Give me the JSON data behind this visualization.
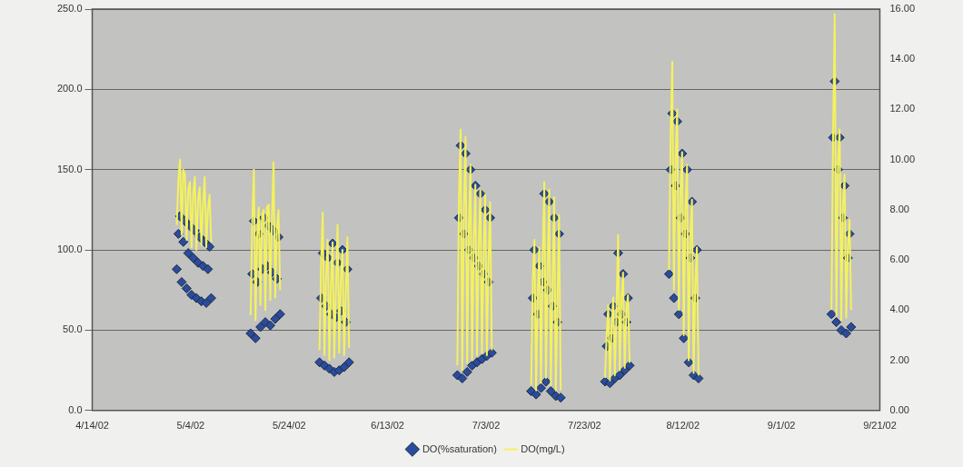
{
  "chart_data": {
    "type": "scatter",
    "x": [
      "2002-05-01T04:00",
      "2002-05-01T12:00",
      "2002-05-01T20:00",
      "2002-05-02T04:00",
      "2002-05-02T12:00",
      "2002-05-02T20:00",
      "2002-05-03T04:00",
      "2002-05-03T12:00",
      "2002-05-03T20:00",
      "2002-05-04T04:00",
      "2002-05-04T12:00",
      "2002-05-04T20:00",
      "2002-05-05T04:00",
      "2002-05-05T12:00",
      "2002-05-05T20:00",
      "2002-05-06T04:00",
      "2002-05-06T12:00",
      "2002-05-06T20:00",
      "2002-05-07T04:00",
      "2002-05-07T12:00",
      "2002-05-07T20:00",
      "2002-05-08T04:00",
      "2002-05-12",
      "2002-05-16T04:00",
      "2002-05-16T12:00",
      "2002-05-16T20:00",
      "2002-05-17T04:00",
      "2002-05-17T12:00",
      "2002-05-17T20:00",
      "2002-05-18T04:00",
      "2002-05-18T12:00",
      "2002-05-18T20:00",
      "2002-05-19T04:00",
      "2002-05-19T12:00",
      "2002-05-19T20:00",
      "2002-05-20T04:00",
      "2002-05-20T12:00",
      "2002-05-20T20:00",
      "2002-05-21T04:00",
      "2002-05-21T12:00",
      "2002-05-21T20:00",
      "2002-05-22T04:00",
      "2002-05-26",
      "2002-05-30T04:00",
      "2002-05-30T12:00",
      "2002-05-30T20:00",
      "2002-05-31T04:00",
      "2002-05-31T12:00",
      "2002-05-31T20:00",
      "2002-06-01T04:00",
      "2002-06-01T12:00",
      "2002-06-01T20:00",
      "2002-06-02T04:00",
      "2002-06-02T12:00",
      "2002-06-02T20:00",
      "2002-06-03T04:00",
      "2002-06-03T12:00",
      "2002-06-03T20:00",
      "2002-06-04T04:00",
      "2002-06-04T12:00",
      "2002-06-04T20:00",
      "2002-06-05T04:00",
      "2002-06-16",
      "2002-06-27T04:00",
      "2002-06-27T12:00",
      "2002-06-27T20:00",
      "2002-06-28T04:00",
      "2002-06-28T12:00",
      "2002-06-28T20:00",
      "2002-06-29T04:00",
      "2002-06-29T12:00",
      "2002-06-29T20:00",
      "2002-06-30T04:00",
      "2002-06-30T12:00",
      "2002-06-30T20:00",
      "2002-07-01T04:00",
      "2002-07-01T12:00",
      "2002-07-01T20:00",
      "2002-07-02T04:00",
      "2002-07-02T12:00",
      "2002-07-02T20:00",
      "2002-07-03T04:00",
      "2002-07-03T12:00",
      "2002-07-03T20:00",
      "2002-07-04T04:00",
      "2002-07-08",
      "2002-07-12T04:00",
      "2002-07-12T12:00",
      "2002-07-12T20:00",
      "2002-07-13T04:00",
      "2002-07-13T12:00",
      "2002-07-13T20:00",
      "2002-07-14T04:00",
      "2002-07-14T12:00",
      "2002-07-14T20:00",
      "2002-07-15T04:00",
      "2002-07-15T12:00",
      "2002-07-15T20:00",
      "2002-07-16T04:00",
      "2002-07-16T12:00",
      "2002-07-16T20:00",
      "2002-07-17T04:00",
      "2002-07-17T12:00",
      "2002-07-17T20:00",
      "2002-07-18T04:00",
      "2002-07-22",
      "2002-07-27T04:00",
      "2002-07-27T12:00",
      "2002-07-27T20:00",
      "2002-07-28T04:00",
      "2002-07-28T12:00",
      "2002-07-28T20:00",
      "2002-07-29T04:00",
      "2002-07-29T12:00",
      "2002-07-29T20:00",
      "2002-07-30T04:00",
      "2002-07-30T12:00",
      "2002-07-30T20:00",
      "2002-07-31T04:00",
      "2002-07-31T12:00",
      "2002-07-31T20:00",
      "2002-08-01T04:00",
      "2002-08-05",
      "2002-08-09T04:00",
      "2002-08-09T12:00",
      "2002-08-09T20:00",
      "2002-08-10T04:00",
      "2002-08-10T12:00",
      "2002-08-10T20:00",
      "2002-08-11T04:00",
      "2002-08-11T12:00",
      "2002-08-11T20:00",
      "2002-08-12T04:00",
      "2002-08-12T12:00",
      "2002-08-12T20:00",
      "2002-08-13T04:00",
      "2002-08-13T12:00",
      "2002-08-13T20:00",
      "2002-08-14T04:00",
      "2002-08-14T12:00",
      "2002-08-14T20:00",
      "2002-08-15T04:00",
      "2002-08-28",
      "2002-09-11T04:00",
      "2002-09-11T12:00",
      "2002-09-11T20:00",
      "2002-09-12T04:00",
      "2002-09-12T12:00",
      "2002-09-12T20:00",
      "2002-09-13T04:00",
      "2002-09-13T12:00",
      "2002-09-13T20:00",
      "2002-09-14T04:00",
      "2002-09-14T12:00",
      "2002-09-14T20:00",
      "2002-09-15T04:00"
    ],
    "series": [
      {
        "name": "DO(%saturation)",
        "color": "#2b4c9c",
        "marker": "diamond",
        "values": [
          88,
          110,
          121,
          80,
          105,
          118,
          76,
          98,
          115,
          72,
          95,
          112,
          70,
          92,
          108,
          68,
          90,
          105,
          67,
          88,
          102,
          70,
          null,
          48,
          85,
          118,
          45,
          80,
          110,
          52,
          88,
          120,
          55,
          90,
          115,
          53,
          86,
          112,
          57,
          82,
          108,
          60,
          null,
          30,
          70,
          98,
          28,
          65,
          95,
          26,
          60,
          104,
          24,
          58,
          92,
          25,
          62,
          100,
          27,
          55,
          88,
          30,
          null,
          22,
          120,
          165,
          20,
          110,
          160,
          24,
          100,
          150,
          28,
          95,
          140,
          30,
          90,
          135,
          32,
          85,
          125,
          34,
          80,
          120,
          36,
          null,
          12,
          70,
          100,
          10,
          60,
          90,
          14,
          80,
          135,
          18,
          75,
          130,
          12,
          65,
          120,
          9,
          55,
          110,
          8,
          null,
          18,
          40,
          60,
          17,
          45,
          65,
          20,
          55,
          98,
          22,
          60,
          85,
          25,
          55,
          70,
          28,
          null,
          85,
          150,
          185,
          70,
          140,
          180,
          60,
          120,
          160,
          45,
          110,
          150,
          30,
          95,
          130,
          22,
          70,
          100,
          20,
          null,
          60,
          170,
          205,
          55,
          150,
          170,
          50,
          120,
          140,
          48,
          95,
          110,
          52
        ]
      },
      {
        "name": "DO(mg/L)",
        "type": "line",
        "axis": "y2",
        "color": "#f4f25c",
        "marker": "none",
        "values": [
          7.4,
          9.2,
          10.0,
          7.0,
          9.6,
          9.4,
          6.8,
          8.8,
          9.1,
          6.5,
          8.6,
          9.3,
          6.4,
          8.4,
          8.9,
          6.6,
          8.2,
          9.3,
          6.5,
          8.0,
          8.6,
          6.7,
          null,
          3.8,
          7.5,
          9.6,
          3.6,
          6.9,
          8.1,
          4.2,
          7.8,
          8.0,
          4.0,
          8.1,
          8.2,
          4.4,
          7.6,
          9.9,
          4.5,
          7.2,
          8.0,
          4.8,
          null,
          2.4,
          6.0,
          7.9,
          2.2,
          5.4,
          6.8,
          2.0,
          5.0,
          6.7,
          2.1,
          4.8,
          7.4,
          2.3,
          5.2,
          6.4,
          2.2,
          4.6,
          6.9,
          2.5,
          null,
          1.8,
          8.5,
          11.2,
          1.6,
          8.0,
          10.9,
          1.9,
          7.2,
          9.8,
          2.0,
          6.8,
          9.0,
          2.2,
          6.5,
          8.8,
          2.3,
          6.2,
          8.6,
          2.2,
          5.9,
          8.3,
          2.4,
          null,
          1.0,
          5.2,
          6.8,
          0.8,
          4.6,
          6.5,
          1.1,
          6.0,
          9.1,
          1.3,
          5.5,
          8.8,
          1.0,
          4.9,
          8.5,
          0.8,
          4.2,
          7.8,
          0.8,
          null,
          1.3,
          3.0,
          4.2,
          1.2,
          3.3,
          4.5,
          1.4,
          4.0,
          7.0,
          1.6,
          4.4,
          5.5,
          1.7,
          4.0,
          4.6,
          1.9,
          null,
          5.6,
          11.0,
          13.9,
          4.8,
          10.0,
          12.0,
          4.0,
          8.8,
          10.3,
          3.0,
          8.0,
          9.8,
          2.0,
          7.0,
          8.4,
          1.5,
          5.0,
          6.5,
          1.4,
          null,
          4.0,
          11.0,
          15.8,
          3.8,
          10.0,
          11.2,
          3.6,
          8.2,
          9.4,
          3.7,
          6.5,
          7.6,
          4.0
        ]
      }
    ],
    "xlim": [
      "2002-04-14",
      "2002-09-21"
    ],
    "xticks": [
      {
        "value": "2002-04-14",
        "label": "4/14/02"
      },
      {
        "value": "2002-05-04",
        "label": "5/4/02"
      },
      {
        "value": "2002-05-24",
        "label": "5/24/02"
      },
      {
        "value": "2002-06-13",
        "label": "6/13/02"
      },
      {
        "value": "2002-07-03",
        "label": "7/3/02"
      },
      {
        "value": "2002-07-23",
        "label": "7/23/02"
      },
      {
        "value": "2002-08-12",
        "label": "8/12/02"
      },
      {
        "value": "2002-09-01",
        "label": "9/1/02"
      },
      {
        "value": "2002-09-21",
        "label": "9/21/02"
      }
    ],
    "ylim": [
      0,
      250
    ],
    "yticks": [
      {
        "value": 0,
        "label": "0.0"
      },
      {
        "value": 50,
        "label": "50.0"
      },
      {
        "value": 100,
        "label": "100.0"
      },
      {
        "value": 150,
        "label": "150.0"
      },
      {
        "value": 200,
        "label": "200.0"
      },
      {
        "value": 250,
        "label": "250.0"
      }
    ],
    "y2lim": [
      0,
      16
    ],
    "y2ticks": [
      {
        "value": 0,
        "label": "0.00"
      },
      {
        "value": 2,
        "label": "2.00"
      },
      {
        "value": 4,
        "label": "4.00"
      },
      {
        "value": 6,
        "label": "6.00"
      },
      {
        "value": 8,
        "label": "8.00"
      },
      {
        "value": 10,
        "label": "10.00"
      },
      {
        "value": 12,
        "label": "12.00"
      },
      {
        "value": 14,
        "label": "14.00"
      },
      {
        "value": 16,
        "label": "16.00"
      }
    ],
    "grid": "y",
    "legend": "bottom"
  }
}
